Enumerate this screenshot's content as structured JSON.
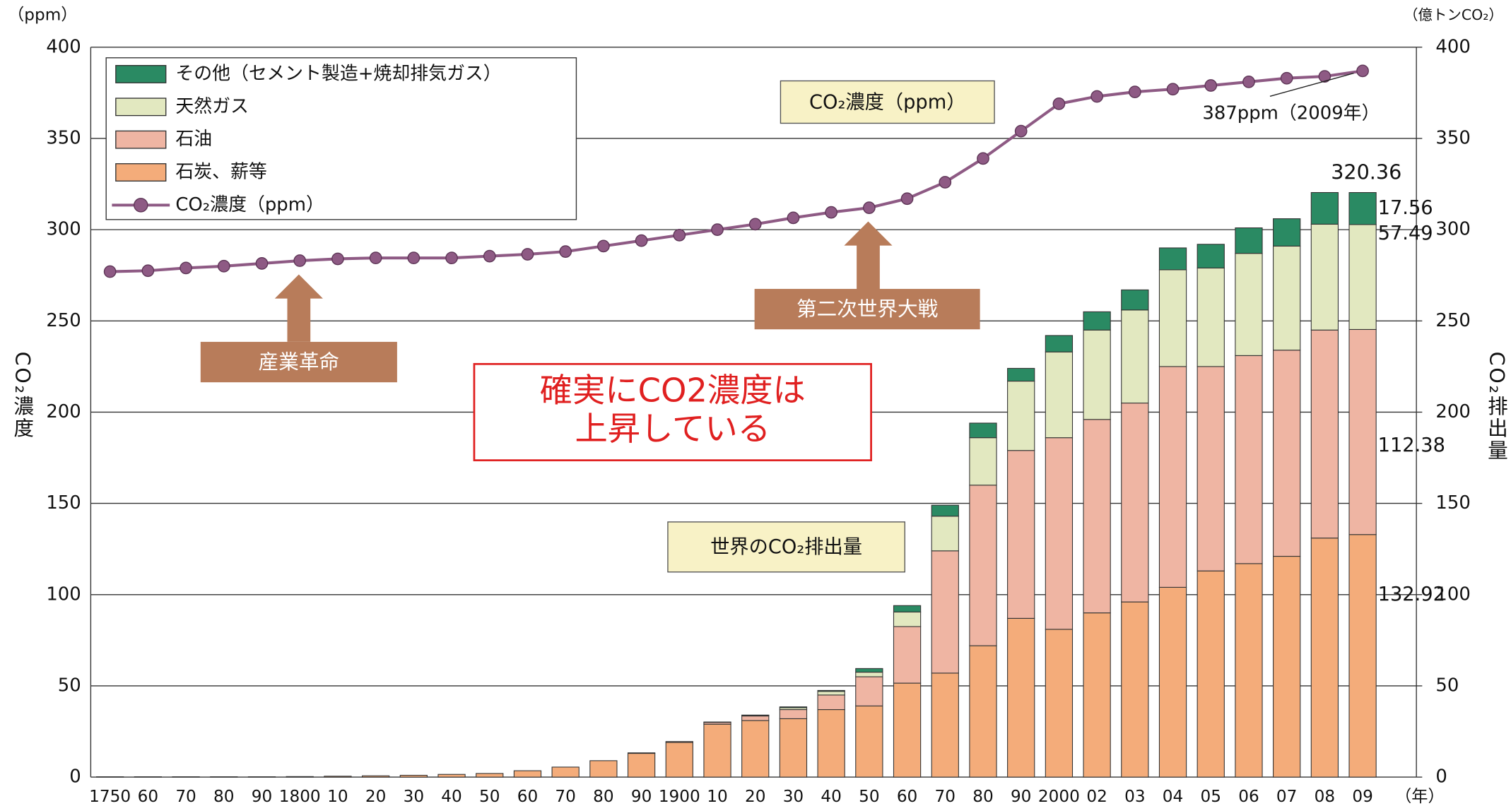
{
  "chart_data": {
    "type": "bar",
    "y_unit_label": "（ppm）",
    "y2_unit_label": "（億トンCO₂）",
    "x_unit_label": "（年）",
    "ylabel": "CO₂濃度",
    "y2label": "CO₂排出量",
    "categories": [
      "1750",
      "60",
      "70",
      "80",
      "90",
      "1800",
      "10",
      "20",
      "30",
      "40",
      "50",
      "60",
      "70",
      "80",
      "90",
      "1900",
      "10",
      "20",
      "30",
      "40",
      "50",
      "60",
      "70",
      "80",
      "90",
      "2000",
      "02",
      "03",
      "04",
      "05",
      "06",
      "07",
      "08",
      "09"
    ],
    "ylim": [
      0,
      400
    ],
    "yticks": [
      0,
      50,
      100,
      150,
      200,
      250,
      300,
      350,
      400
    ],
    "y2lim": [
      0,
      400
    ],
    "y2ticks": [
      0,
      50,
      100,
      150,
      200,
      250,
      300,
      350,
      400
    ],
    "grid": true,
    "series": [
      {
        "name": "石炭、薪等",
        "color": "#f4ac7a",
        "axis": "y2",
        "values": [
          0.2,
          0.2,
          0.2,
          0.2,
          0.2,
          0.3,
          0.5,
          0.7,
          1,
          1.5,
          2,
          3.5,
          5.5,
          9,
          13,
          19,
          29,
          31,
          32,
          37,
          39,
          51.5,
          57,
          72,
          87,
          81,
          90,
          96,
          104,
          113,
          117,
          121,
          131,
          132.92
        ]
      },
      {
        "name": "石油",
        "color": "#efb5a3",
        "axis": "y2",
        "values": [
          0,
          0,
          0,
          0,
          0,
          0,
          0,
          0,
          0,
          0,
          0,
          0,
          0,
          0,
          0.3,
          0.5,
          1,
          2.5,
          5,
          8,
          16,
          31,
          67,
          88,
          92,
          105,
          106,
          109,
          121,
          112,
          114,
          113,
          114,
          112.38
        ]
      },
      {
        "name": "天然ガス",
        "color": "#e2e8c0",
        "axis": "y2",
        "values": [
          0,
          0,
          0,
          0,
          0,
          0,
          0,
          0,
          0,
          0,
          0,
          0,
          0,
          0,
          0,
          0,
          0,
          0.3,
          1,
          2,
          2.5,
          8,
          19,
          26,
          38,
          47,
          49,
          51,
          53,
          54,
          56,
          57,
          58,
          57.49
        ]
      },
      {
        "name": "その他（セメント製造+焼却排気ガス）",
        "color": "#2a8a63",
        "axis": "y2",
        "values": [
          0,
          0,
          0,
          0,
          0,
          0,
          0,
          0,
          0,
          0,
          0,
          0,
          0,
          0,
          0,
          0,
          0.2,
          0.2,
          0.5,
          0.5,
          2,
          3.5,
          6,
          8,
          7,
          9,
          10,
          11,
          12,
          13,
          14,
          15,
          17.36,
          17.56
        ]
      }
    ],
    "line": {
      "name": "CO₂濃度（ppm）",
      "color": "#8e5a84",
      "values": [
        277,
        277.5,
        279,
        280,
        281.5,
        283,
        284,
        284.5,
        284.5,
        284.5,
        285.5,
        286.5,
        288,
        291,
        294,
        297,
        300,
        303,
        306.5,
        309.5,
        312,
        317,
        326,
        339,
        354,
        369,
        373,
        375.5,
        377,
        379,
        381,
        383,
        384,
        387
      ]
    },
    "annotations": {
      "total_2008": "320.36",
      "latest_ppm": "387ppm（2009年）",
      "ppm_box": "CO₂濃度（ppm）",
      "emission_box": "世界のCO₂排出量",
      "industrial": "産業革命",
      "ww2": "第二次世界大戦",
      "claim_1": "確実にCO2濃度は",
      "claim_2": "上昇している"
    }
  }
}
